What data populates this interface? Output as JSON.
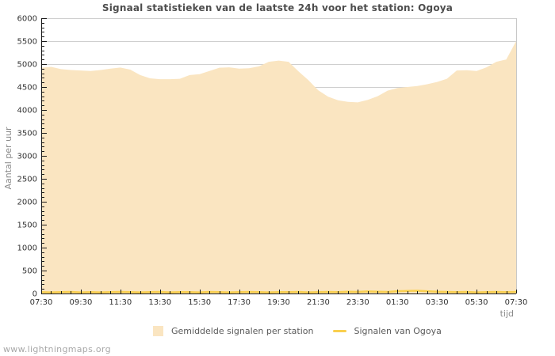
{
  "watermark": "www.lightningmaps.org",
  "colors": {
    "background": "#FFFFFF",
    "area_fill": "#FAE5C1",
    "line": "#F9CF4F",
    "grid": "#CFCFCF",
    "border": "#C8C8C8",
    "axis": "#1A1A1A",
    "title": "#4D4D4D",
    "tick_label": "#333333",
    "axis_title": "#8A8A8A",
    "legend_text": "#5A5A5A",
    "watermark_text": "#A8A8A8"
  },
  "chart_data": {
    "type": "area",
    "title": "Signaal statistieken van de laatste 24h voor het station: Ogoya",
    "xlabel": "tijd",
    "ylabel": "Aantal per uur",
    "ylim": [
      0,
      6000
    ],
    "ytick_step": 500,
    "y_minor_step": 100,
    "grid": "horizontal-major",
    "legend_position": "bottom",
    "x_ticklabels": [
      "07:30",
      "09:30",
      "11:30",
      "13:30",
      "15:30",
      "17:30",
      "19:30",
      "21:30",
      "23:30",
      "01:30",
      "03:30",
      "05:30",
      "07:30"
    ],
    "x": [
      "07:30",
      "08:00",
      "08:30",
      "09:00",
      "09:30",
      "10:00",
      "10:30",
      "11:00",
      "11:30",
      "12:00",
      "12:30",
      "13:00",
      "13:30",
      "14:00",
      "14:30",
      "15:00",
      "15:30",
      "16:00",
      "16:30",
      "17:00",
      "17:30",
      "18:00",
      "18:30",
      "19:00",
      "19:30",
      "20:00",
      "20:30",
      "21:00",
      "21:30",
      "22:00",
      "22:30",
      "23:00",
      "23:30",
      "00:00",
      "00:30",
      "01:00",
      "01:30",
      "02:00",
      "02:30",
      "03:00",
      "03:30",
      "04:00",
      "04:30",
      "05:00",
      "05:30",
      "06:00",
      "06:30",
      "07:00",
      "07:30"
    ],
    "series": [
      {
        "name": "Gemiddelde signalen per station",
        "type": "area",
        "color": "#FAE5C1",
        "values": [
          4920,
          4940,
          4890,
          4870,
          4860,
          4850,
          4870,
          4900,
          4925,
          4880,
          4760,
          4690,
          4670,
          4670,
          4680,
          4760,
          4780,
          4850,
          4920,
          4930,
          4900,
          4910,
          4950,
          5050,
          5075,
          5050,
          4840,
          4650,
          4430,
          4290,
          4210,
          4175,
          4165,
          4220,
          4300,
          4420,
          4480,
          4500,
          4520,
          4560,
          4610,
          4680,
          4860,
          4865,
          4850,
          4930,
          5050,
          5100,
          5500
        ]
      },
      {
        "name": "Signalen van Ogoya",
        "type": "line",
        "color": "#F9CF4F",
        "values": [
          30,
          25,
          30,
          35,
          25,
          30,
          25,
          30,
          35,
          30,
          25,
          30,
          35,
          25,
          30,
          30,
          25,
          35,
          30,
          25,
          30,
          35,
          30,
          25,
          30,
          30,
          35,
          25,
          30,
          35,
          30,
          40,
          35,
          45,
          40,
          35,
          50,
          55,
          60,
          50,
          40,
          35,
          30,
          35,
          25,
          30,
          35,
          30,
          35
        ]
      }
    ]
  }
}
